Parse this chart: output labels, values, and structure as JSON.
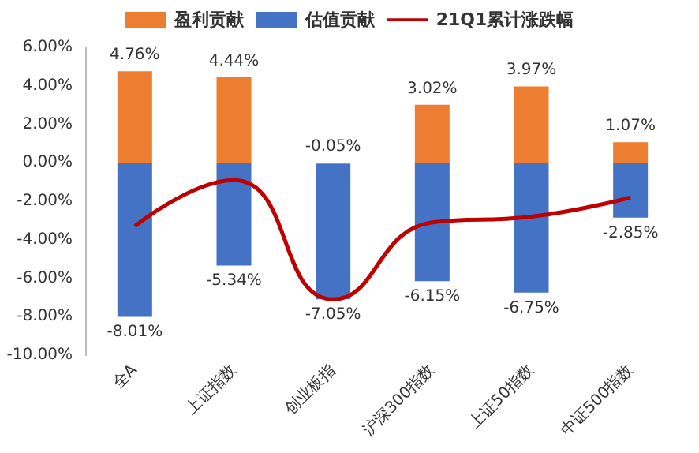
{
  "chart_data": {
    "type": "bar",
    "stacked": true,
    "categories": [
      "全A",
      "上证指数",
      "创业板指",
      "沪深300指数",
      "上证50指数",
      "中证500指数"
    ],
    "series": [
      {
        "name": "盈利贡献",
        "color": "#ed7d31",
        "values": [
          4.76,
          4.44,
          -0.05,
          3.02,
          3.97,
          1.07
        ],
        "value_labels": [
          "4.76%",
          "4.44%",
          "-0.05%",
          "3.02%",
          "3.97%",
          "1.07%"
        ]
      },
      {
        "name": "估值贡献",
        "color": "#4472c4",
        "values": [
          -8.01,
          -5.34,
          -7.05,
          -6.15,
          -6.75,
          -2.85
        ],
        "value_labels": [
          "-8.01%",
          "-5.34%",
          "-7.05%",
          "-6.15%",
          "-6.75%",
          "-2.85%"
        ]
      },
      {
        "name": "21Q1累计涨跌幅",
        "type": "line",
        "color": "#c00000",
        "values": [
          -3.3,
          -0.9,
          -7.1,
          -3.1,
          -2.8,
          -1.8
        ]
      }
    ],
    "ylim": [
      -10,
      6
    ],
    "yticks": [
      {
        "value": -10,
        "label": "-10.00%"
      },
      {
        "value": -8,
        "label": "-8.00%"
      },
      {
        "value": -6,
        "label": "-6.00%"
      },
      {
        "value": -4,
        "label": "-4.00%"
      },
      {
        "value": -2,
        "label": "-2.00%"
      },
      {
        "value": 0,
        "label": "0.00%"
      },
      {
        "value": 2,
        "label": "2.00%"
      },
      {
        "value": 4,
        "label": "4.00%"
      },
      {
        "value": 6,
        "label": "6.00%"
      }
    ],
    "legend": "top",
    "grid": false,
    "marker": "none"
  }
}
